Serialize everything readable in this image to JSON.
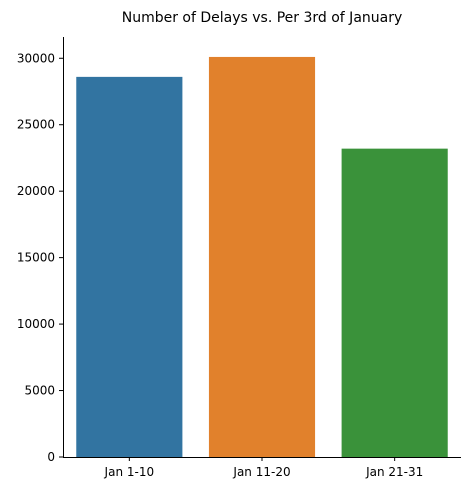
{
  "chart_data": {
    "type": "bar",
    "title": "Number of Delays vs. Per 3rd of January",
    "xlabel": "",
    "ylabel": "",
    "categories": [
      "Jan 1-10",
      "Jan 11-20",
      "Jan 21-31"
    ],
    "values": [
      28600,
      30100,
      23200
    ],
    "colors": [
      "#3274a1",
      "#e1812c",
      "#3a923a"
    ],
    "ylim": [
      0,
      31600
    ],
    "yticks": [
      0,
      5000,
      10000,
      15000,
      20000,
      25000,
      30000
    ],
    "grid": false,
    "legend": "none"
  }
}
